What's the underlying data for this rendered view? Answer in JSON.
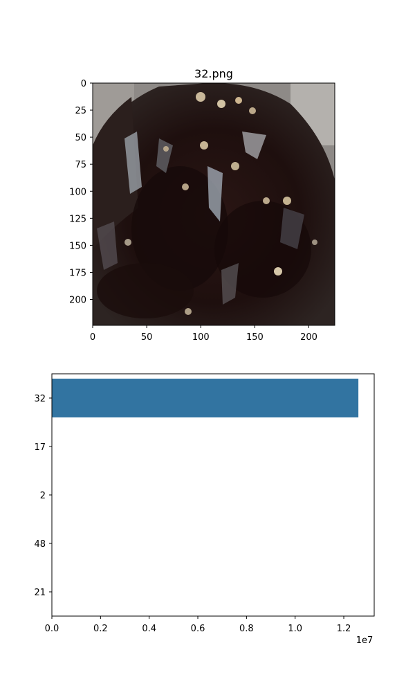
{
  "figure": {
    "image_panel": {
      "title": "32.png",
      "image_description": "blurry dark photo of a pile of dark leafy material with light specks",
      "xlim": [
        0,
        224
      ],
      "ylim": [
        224,
        0
      ],
      "x_ticks": [
        "0",
        "50",
        "100",
        "150",
        "200"
      ],
      "x_tick_values": [
        0,
        50,
        100,
        150,
        200
      ],
      "y_ticks": [
        "0",
        "25",
        "50",
        "75",
        "100",
        "125",
        "150",
        "175",
        "200"
      ],
      "y_tick_values": [
        0,
        25,
        50,
        75,
        100,
        125,
        150,
        175,
        200
      ]
    },
    "bar_panel": {
      "offset_label": "1e7",
      "x_ticks": [
        "0.0",
        "0.2",
        "0.4",
        "0.6",
        "0.8",
        "1.0",
        "1.2"
      ],
      "x_tick_values": [
        0.0,
        0.2,
        0.4,
        0.6,
        0.8,
        1.0,
        1.2
      ]
    }
  },
  "chart_data": [
    {
      "type": "image",
      "title": "32.png",
      "xlim": [
        0,
        224
      ],
      "ylim": [
        224,
        0
      ]
    },
    {
      "type": "bar",
      "orientation": "horizontal",
      "categories": [
        "32",
        "17",
        "2",
        "48",
        "21"
      ],
      "values": [
        12600000,
        0,
        0,
        0,
        0
      ],
      "xlim": [
        0,
        13250000
      ],
      "bar_color": "#3274a1",
      "grid": false
    }
  ]
}
